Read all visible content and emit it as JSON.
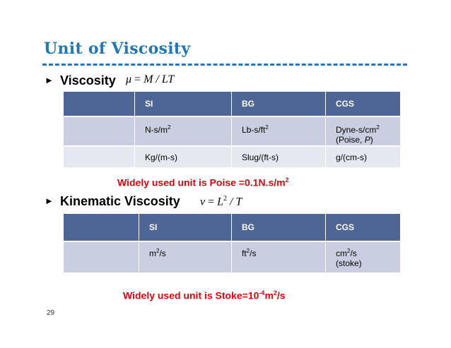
{
  "title": "Unit of Viscosity",
  "bullet1": {
    "label": "Viscosity",
    "formula_lhs": "μ",
    "formula_rhs": "M / LT"
  },
  "table1": {
    "headers": [
      "SI",
      "BG",
      "CGS"
    ],
    "rows": [
      {
        "si_base": "N-s/m",
        "si_exp": "2",
        "bg_base": "Lb-s/ft",
        "bg_exp": "2",
        "cgs_base": "Dyne-s/cm",
        "cgs_exp": "2",
        "cgs_note_prefix": "(Poise, ",
        "cgs_note_symbol": "P",
        "cgs_note_suffix": ")"
      },
      {
        "si": "Kg/(m-s)",
        "bg": "Slug/(ft-s)",
        "cgs": "g/(cm-s)"
      }
    ]
  },
  "note1": {
    "text": "Widely used unit is Poise =0.1N.s/m",
    "exp": "2"
  },
  "bullet2": {
    "label": "Kinematic Viscosity",
    "formula_lhs": "ν",
    "formula_base": "L",
    "formula_exp": "2",
    "formula_tail": "/ T"
  },
  "table2": {
    "headers": [
      "SI",
      "BG",
      "CGS"
    ],
    "row": {
      "si_base": "m",
      "si_exp": "2",
      "si_tail": "/s",
      "bg_base": "ft",
      "bg_exp": "2",
      "bg_tail": "/s",
      "cgs_base": "cm",
      "cgs_exp": "2",
      "cgs_tail": "/s",
      "cgs_note": "(stoke)"
    }
  },
  "note2": {
    "prefix": "Widely used unit is Stoke=10",
    "exp1": "-4",
    "mid": "m",
    "exp2": "2",
    "tail": "/s"
  },
  "page_number": "29"
}
